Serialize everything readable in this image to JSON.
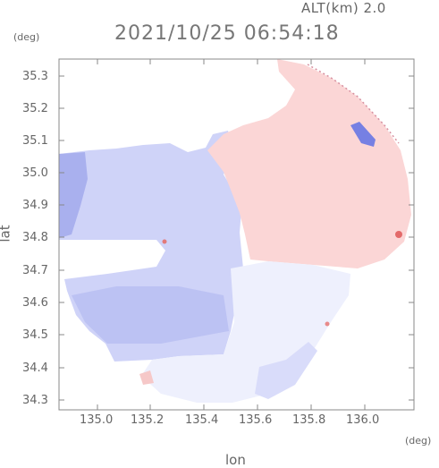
{
  "header": {
    "altitude": "ALT(km) 2.0",
    "timestamp": "2021/10/25 06:54:18"
  },
  "axes": {
    "x_unit": "(deg)",
    "y_unit": "(deg)",
    "xlabel": "lon",
    "ylabel": "lat",
    "x_ticks": [
      "135.0",
      "135.2",
      "135.4",
      "135.6",
      "135.8",
      "136.0"
    ],
    "y_ticks": [
      "35.3",
      "35.2",
      "35.1",
      "35.0",
      "34.9",
      "34.8",
      "34.7",
      "34.6",
      "34.5",
      "34.4",
      "34.3"
    ],
    "x_range": [
      134.87,
      136.18
    ],
    "y_range": [
      34.27,
      35.37
    ]
  },
  "colors": {
    "receding": "#c9cdf7",
    "approaching": "#fbd3d3",
    "strong_receding": "#6670e0",
    "strong_approaching": "#e05050"
  }
}
